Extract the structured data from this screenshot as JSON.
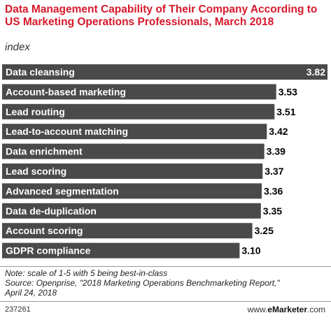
{
  "chart_data": {
    "type": "bar",
    "orientation": "horizontal",
    "title": "Data Management Capability of Their Company According to US Marketing Operations Professionals, March 2018",
    "subtitle": "index",
    "categories": [
      "Data cleansing",
      "Account-based marketing",
      "Lead routing",
      "Lead-to-account matching",
      "Data enrichment",
      "Lead scoring",
      "Advanced segmentation",
      "Data de-duplication",
      "Account scoring",
      "GDPR compliance"
    ],
    "values": [
      3.82,
      3.53,
      3.51,
      3.42,
      3.39,
      3.37,
      3.36,
      3.35,
      3.25,
      3.1
    ],
    "value_labels": [
      "3.82",
      "3.53",
      "3.51",
      "3.42",
      "3.39",
      "3.37",
      "3.36",
      "3.35",
      "3.25",
      "3.10"
    ],
    "bar_color": "#4a4a4a",
    "label_color": "#ffffff",
    "value_color": "#000000"
  },
  "footer": {
    "note": "Note: scale of 1-5 with 5 being best-in-class",
    "source_line1": "Source: Openprise, \"2018 Marketing Operations Benchmarketing Report,\"",
    "source_line2": "April 24, 2018",
    "chart_id": "237261",
    "brand_prefix": "www.",
    "brand_name": "eMarketer",
    "brand_suffix": ".com"
  },
  "colors": {
    "title": "#d6182b",
    "rule": "#999999"
  }
}
